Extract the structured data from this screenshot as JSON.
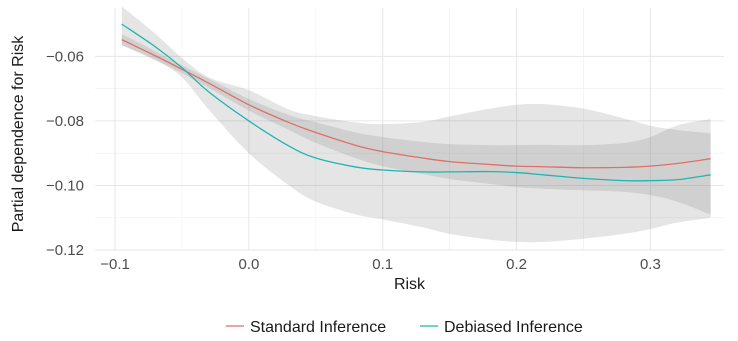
{
  "chart_data": {
    "type": "line",
    "title": "",
    "xlabel": "Risk",
    "ylabel": "Partial dependence for Risk",
    "xlim": [
      -0.115,
      0.355
    ],
    "ylim": [
      -0.12,
      -0.045
    ],
    "x_ticks": [
      -0.1,
      0.0,
      0.1,
      0.2,
      0.3
    ],
    "x_tick_labels": [
      "−0.1",
      "0.0",
      "0.1",
      "0.2",
      "0.3"
    ],
    "y_ticks": [
      -0.06,
      -0.08,
      -0.1,
      -0.12
    ],
    "y_tick_labels": [
      "−0.06",
      "−0.08",
      "−0.10",
      "−0.12"
    ],
    "grid": true,
    "legend_position": "bottom",
    "x": [
      -0.095,
      -0.07,
      -0.05,
      -0.03,
      0.0,
      0.03,
      0.05,
      0.08,
      0.1,
      0.13,
      0.15,
      0.18,
      0.2,
      0.22,
      0.25,
      0.28,
      0.3,
      0.32,
      0.345
    ],
    "series": [
      {
        "name": "Standard Inference",
        "color": "#e06f65",
        "values": [
          -0.0548,
          -0.0598,
          -0.064,
          -0.0683,
          -0.075,
          -0.0805,
          -0.0836,
          -0.0876,
          -0.0895,
          -0.0915,
          -0.0926,
          -0.0935,
          -0.094,
          -0.0942,
          -0.0945,
          -0.0944,
          -0.094,
          -0.0932,
          -0.0917
        ],
        "band_lower": [
          -0.0565,
          -0.0612,
          -0.0652,
          -0.0697,
          -0.0768,
          -0.0828,
          -0.0868,
          -0.0916,
          -0.094,
          -0.0965,
          -0.098,
          -0.0995,
          -0.1005,
          -0.101,
          -0.1015,
          -0.102,
          -0.103,
          -0.105,
          -0.109
        ],
        "band_upper": [
          -0.0531,
          -0.0584,
          -0.0628,
          -0.0669,
          -0.0732,
          -0.0782,
          -0.0804,
          -0.0836,
          -0.085,
          -0.0865,
          -0.0872,
          -0.0875,
          -0.0875,
          -0.0874,
          -0.0875,
          -0.0868,
          -0.085,
          -0.0814,
          -0.0794
        ]
      },
      {
        "name": "Debiased Inference",
        "color": "#1fb5b0",
        "values": [
          -0.05,
          -0.057,
          -0.0635,
          -0.071,
          -0.08,
          -0.0878,
          -0.0915,
          -0.0943,
          -0.0952,
          -0.0958,
          -0.0958,
          -0.0957,
          -0.096,
          -0.0967,
          -0.0978,
          -0.0985,
          -0.0985,
          -0.0982,
          -0.0967
        ],
        "band_lower": [
          -0.0565,
          -0.061,
          -0.0665,
          -0.0765,
          -0.09,
          -0.1,
          -0.105,
          -0.109,
          -0.1105,
          -0.113,
          -0.115,
          -0.1168,
          -0.1175,
          -0.1175,
          -0.1165,
          -0.115,
          -0.1135,
          -0.1115,
          -0.11
        ],
        "band_upper": [
          -0.0445,
          -0.053,
          -0.0605,
          -0.0665,
          -0.0705,
          -0.0765,
          -0.0785,
          -0.0805,
          -0.081,
          -0.0803,
          -0.0786,
          -0.0762,
          -0.075,
          -0.0748,
          -0.0762,
          -0.0792,
          -0.0815,
          -0.0828,
          -0.0838
        ]
      }
    ]
  }
}
